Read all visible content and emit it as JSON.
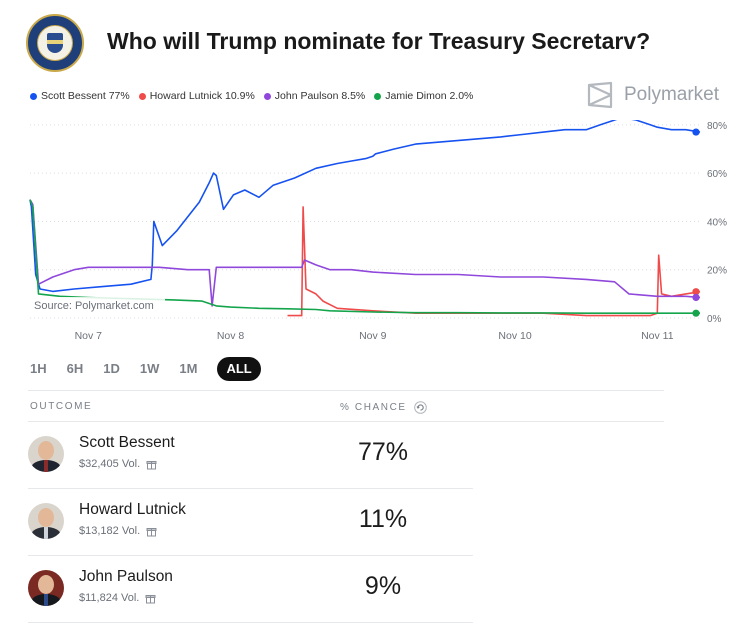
{
  "title": "Who will Trump nominate for Treasury Secretarv?",
  "brand": "Polymarket",
  "legend": [
    {
      "label": "Scott Bessent 77%",
      "color": "#1652f0"
    },
    {
      "label": "Howard Lutnick 10.9%",
      "color": "#ef4b4b"
    },
    {
      "label": "John Paulson 8.5%",
      "color": "#8f48db"
    },
    {
      "label": "Jamie Dimon 2.0%",
      "color": "#14a54c"
    }
  ],
  "tabs": [
    "1H",
    "6H",
    "1D",
    "1W",
    "1M",
    "ALL"
  ],
  "active_tab": "ALL",
  "table": {
    "col_outcome": "OUTCOME",
    "col_chance": "% CHANCE"
  },
  "outcomes": [
    {
      "name": "Scott Bessent",
      "volume": "$32,405 Vol.",
      "chance": "77%"
    },
    {
      "name": "Howard Lutnick",
      "volume": "$13,182 Vol.",
      "chance": "11%"
    },
    {
      "name": "John Paulson",
      "volume": "$11,824 Vol.",
      "chance": "9%"
    }
  ],
  "chart_data": {
    "type": "line",
    "source_label": "Source: Polymarket.com",
    "x_ticks": [
      {
        "x": 7,
        "label": "Nov 7"
      },
      {
        "x": 8,
        "label": "Nov 8"
      },
      {
        "x": 9,
        "label": "Nov 9"
      },
      {
        "x": 10,
        "label": "Nov 10"
      },
      {
        "x": 11,
        "label": "Nov 11"
      }
    ],
    "y_ticks": [
      {
        "y": 0,
        "label": "0%"
      },
      {
        "y": 20,
        "label": "20%"
      },
      {
        "y": 40,
        "label": "40%"
      },
      {
        "y": 60,
        "label": "60%"
      },
      {
        "y": 80,
        "label": "80%"
      }
    ],
    "xlim": [
      6.59,
      11.3
    ],
    "ylim": [
      0,
      82
    ],
    "grid": true,
    "series": [
      {
        "name": "Scott Bessent",
        "color": "#1652f0",
        "x": [
          6.59,
          6.6,
          6.63,
          6.66,
          6.75,
          6.9,
          7.1,
          7.3,
          7.44,
          7.45,
          7.46,
          7.52,
          7.62,
          7.7,
          7.78,
          7.85,
          7.88,
          7.9,
          7.95,
          8.02,
          8.1,
          8.2,
          8.3,
          8.45,
          8.6,
          8.75,
          8.85,
          8.95,
          9.0,
          9.02,
          9.15,
          9.3,
          9.5,
          9.7,
          9.9,
          10.05,
          10.2,
          10.35,
          10.5,
          10.55,
          10.6,
          10.75,
          10.85,
          10.95,
          11.0,
          11.1,
          11.2,
          11.3
        ],
        "y": [
          49,
          46,
          18,
          12,
          11,
          12,
          13,
          14,
          16,
          22,
          40,
          30,
          36,
          42,
          48,
          56,
          60,
          59,
          45,
          51,
          53,
          50,
          55,
          58,
          62,
          64,
          65,
          66,
          67,
          68,
          70,
          72,
          73,
          74,
          75,
          76,
          77,
          78,
          78,
          79,
          80,
          83,
          82,
          80,
          79,
          78,
          78,
          77
        ]
      },
      {
        "name": "Howard Lutnick",
        "color": "#ef4b4b",
        "x": [
          8.4,
          8.5,
          8.51,
          8.53,
          8.6,
          8.65,
          8.75,
          9.0,
          9.3,
          9.6,
          9.9,
          10.2,
          10.5,
          10.8,
          10.95,
          11.0,
          11.01,
          11.03,
          11.1,
          11.2,
          11.3
        ],
        "y": [
          1,
          1,
          46,
          12,
          10,
          7,
          4,
          3,
          2,
          2,
          2,
          2,
          1,
          1,
          1,
          2,
          26,
          10,
          9,
          10,
          10.9
        ]
      },
      {
        "name": "John Paulson",
        "color": "#8f48db",
        "x": [
          6.59,
          6.61,
          6.65,
          6.75,
          6.9,
          7.0,
          7.1,
          7.3,
          7.5,
          7.7,
          7.85,
          7.87,
          7.9,
          8.0,
          8.2,
          8.4,
          8.5,
          8.52,
          8.6,
          8.7,
          8.85,
          9.0,
          9.3,
          9.6,
          9.9,
          10.2,
          10.5,
          10.7,
          10.8,
          11.0,
          11.2,
          11.3
        ],
        "y": [
          49,
          47,
          14,
          17,
          20,
          21,
          21,
          21,
          21,
          20,
          20,
          5,
          21,
          21,
          21,
          21,
          21,
          24,
          22,
          20,
          20,
          19,
          18,
          18,
          17,
          17,
          16,
          15,
          10,
          9,
          9,
          8.5
        ]
      },
      {
        "name": "Jamie Dimon",
        "color": "#14a54c",
        "x": [
          6.59,
          6.61,
          6.65,
          6.8,
          7.0,
          7.3,
          7.6,
          7.8,
          7.9,
          8.0,
          8.2,
          8.4,
          8.6,
          8.7,
          9.0,
          9.3,
          9.6,
          9.9,
          10.2,
          10.5,
          10.8,
          11.0,
          11.2,
          11.3
        ],
        "y": [
          49,
          46,
          10,
          9,
          8.5,
          8,
          7.5,
          7,
          5,
          4.5,
          4,
          3.8,
          3.5,
          3,
          2.5,
          2.2,
          2.2,
          2.1,
          2.1,
          2,
          2,
          2,
          2,
          2.0
        ]
      }
    ]
  }
}
